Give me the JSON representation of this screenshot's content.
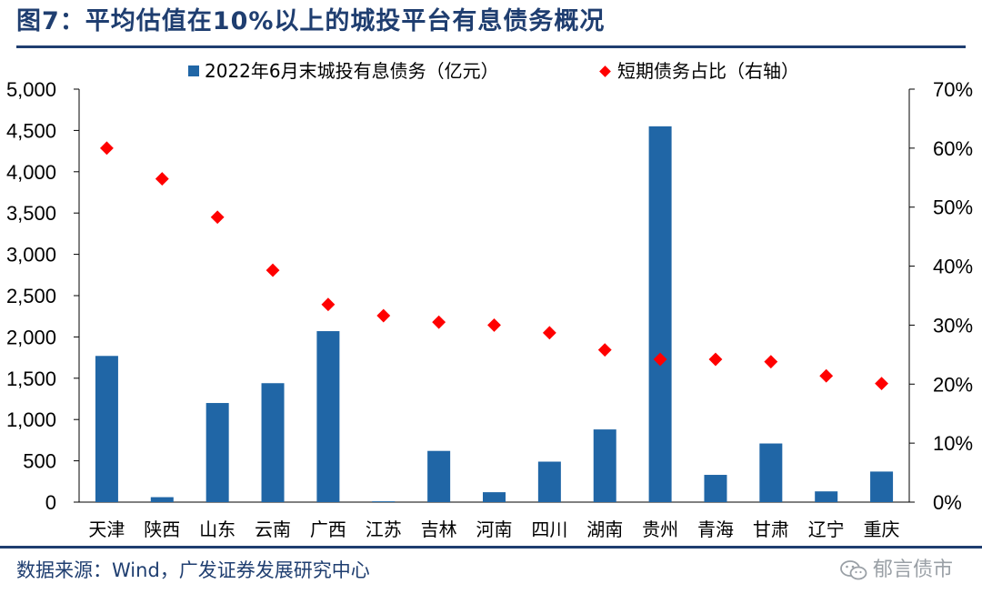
{
  "header": {
    "title": "图7：平均估值在10%以上的城投平台有息债务概况"
  },
  "footer": {
    "source": "数据来源：Wind，广发证券发展研究中心",
    "watermark": "郁言债市",
    "watermark_icon": "wechat-icon"
  },
  "chart_data": {
    "type": "bar",
    "categories": [
      "天津",
      "陕西",
      "山东",
      "云南",
      "广西",
      "江苏",
      "吉林",
      "河南",
      "四川",
      "湖南",
      "贵州",
      "青海",
      "甘肃",
      "辽宁",
      "重庆"
    ],
    "series": [
      {
        "name": "2022年6月末城投有息债务（亿元）",
        "type": "bar",
        "axis": "left",
        "color": "#2066a6",
        "values": [
          1770,
          60,
          1200,
          1440,
          2070,
          10,
          620,
          120,
          490,
          880,
          4550,
          330,
          710,
          130,
          370
        ]
      },
      {
        "name": "短期债务占比（右轴）",
        "type": "scatter",
        "axis": "right",
        "color": "#ff0000",
        "values": [
          60,
          54.8,
          48.3,
          39.3,
          33.5,
          31.6,
          30.5,
          30.0,
          28.7,
          25.8,
          24.2,
          24.2,
          23.8,
          21.4,
          20.1
        ]
      }
    ],
    "y_left": {
      "ylim": [
        0,
        5000
      ],
      "ticks": [
        0,
        500,
        1000,
        1500,
        2000,
        2500,
        3000,
        3500,
        4000,
        4500,
        5000
      ],
      "tick_labels": [
        "0",
        "500",
        "1,000",
        "1,500",
        "2,000",
        "2,500",
        "3,000",
        "3,500",
        "4,000",
        "4,500",
        "5,000"
      ]
    },
    "y_right": {
      "ylim": [
        0,
        70
      ],
      "ticks": [
        0,
        10,
        20,
        30,
        40,
        50,
        60,
        70
      ],
      "tick_labels": [
        "0%",
        "10%",
        "20%",
        "30%",
        "40%",
        "50%",
        "60%",
        "70%"
      ]
    },
    "grid": false,
    "legend": "top-center"
  }
}
